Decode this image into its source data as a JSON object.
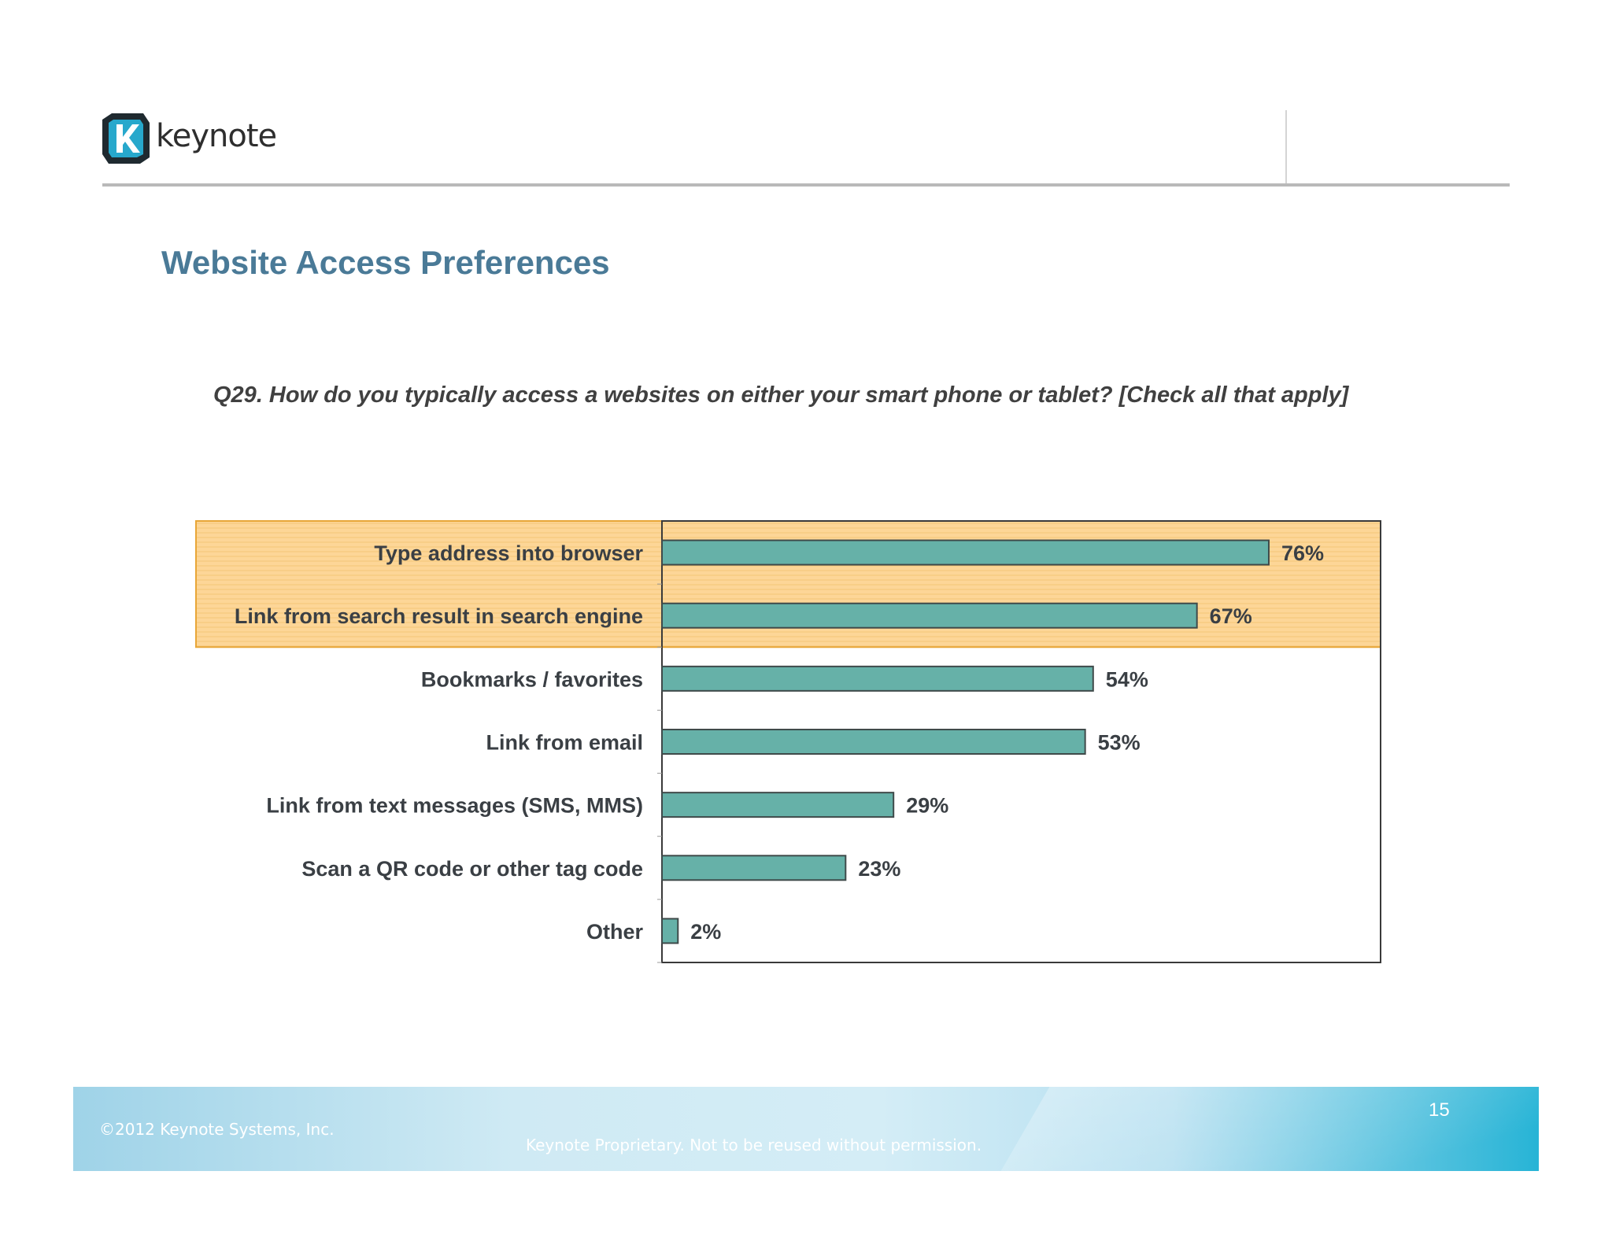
{
  "header": {
    "logo_text": "keynote",
    "logo_mark": "K"
  },
  "page_title": "Website Access Preferences",
  "question": "Q29. How do you typically access a websites on either your smart phone or tablet? [Check all that apply]",
  "colors": {
    "bar_fill": "#66b1a8",
    "bar_stroke": "#3f4a4a",
    "highlight_fill": "#fdd697",
    "highlight_stroke": "#e8a637",
    "title": "#4a7a97",
    "label_text": "#3a3f44"
  },
  "chart_data": {
    "type": "bar",
    "orientation": "horizontal",
    "categories": [
      "Type address into browser",
      "Link from search result in search engine",
      "Bookmarks / favorites",
      "Link from email",
      "Link from text messages (SMS, MMS)",
      "Scan a QR code or other tag code",
      "Other"
    ],
    "values": [
      76,
      67,
      54,
      53,
      29,
      23,
      2
    ],
    "value_labels": [
      "76%",
      "67%",
      "54%",
      "53%",
      "29%",
      "23%",
      "2%"
    ],
    "xlim": [
      0,
      90
    ],
    "unit": "%",
    "highlighted_categories": [
      0,
      1
    ],
    "grid": false,
    "legend": "none"
  },
  "footer": {
    "copyright": "©2012 Keynote Systems, Inc.",
    "proprietary": "Keynote Proprietary. Not to be reused without permission.",
    "page_number": "15"
  }
}
